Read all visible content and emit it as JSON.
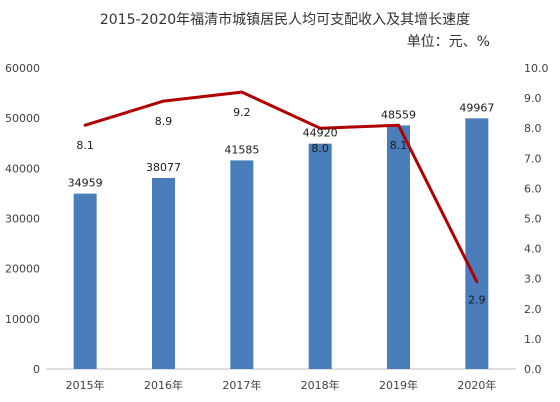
{
  "chart_data": {
    "type": "bar",
    "title": "2015-2020年福清市城镇居民人均可支配收入及其增长速度",
    "unit_label": "单位：元、%",
    "categories": [
      "2015年",
      "2016年",
      "2017年",
      "2018年",
      "2019年",
      "2020年"
    ],
    "series": [
      {
        "type": "bar",
        "axis": "left",
        "values": [
          34959,
          38077,
          41585,
          44920,
          48559,
          49967
        ],
        "color": "#4a7ebb"
      },
      {
        "type": "line",
        "axis": "right",
        "values": [
          8.1,
          8.9,
          9.2,
          8.0,
          8.1,
          2.9
        ],
        "color": "#b00000"
      }
    ],
    "ylim_left": [
      0,
      60000
    ],
    "yticks_left": [
      "0",
      "10000",
      "20000",
      "30000",
      "40000",
      "50000",
      "60000"
    ],
    "ylim_right": [
      0,
      10
    ],
    "yticks_right": [
      "0.0",
      "1.0",
      "2.0",
      "3.0",
      "4.0",
      "5.0",
      "6.0",
      "7.0",
      "8.0",
      "9.0",
      "10.0"
    ],
    "bar_labels": [
      "34959",
      "38077",
      "41585",
      "44920",
      "48559",
      "49967"
    ],
    "line_labels": [
      "8.1",
      "8.9",
      "9.2",
      "8.0",
      "8.1",
      "2.9"
    ],
    "grid": false,
    "legend": "none"
  }
}
